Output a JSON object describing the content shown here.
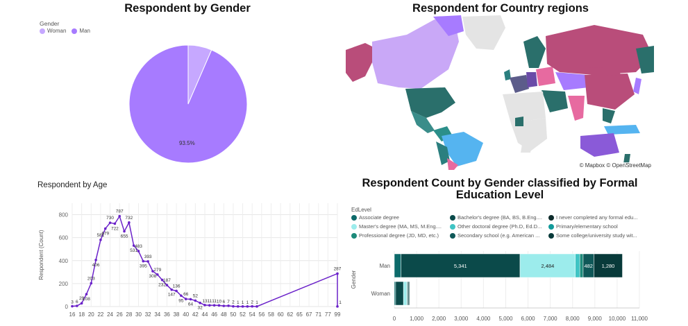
{
  "gender_panel": {
    "title": "Respondent by Gender",
    "legend_title": "Gender",
    "colors": {
      "Woman": "#c6a8ff",
      "Man": "#a77bff"
    }
  },
  "map_panel": {
    "title": "Respondent for Country regions",
    "attribution": "© Mapbox © OpenStreetMap"
  },
  "age_panel": {
    "title": "Respondent by Age",
    "line_color": "#6a21c9"
  },
  "edu_panel": {
    "title_line1": "Respondent Count by Gender classified by Formal",
    "title_line2": "Education Level",
    "legend_title": "EdLevel",
    "legend": [
      {
        "label": "Associate degree",
        "color": "#0d6a6a"
      },
      {
        "label": "Bachelor's degree (BA, BS, B.Eng....",
        "color": "#0b4a4a"
      },
      {
        "label": "I never completed any formal edu...",
        "color": "#0e2b2b"
      },
      {
        "label": "Master's degree (MA, MS, M.Eng....",
        "color": "#9cecec"
      },
      {
        "label": "Other doctoral degree (Ph.D, Ed.D...",
        "color": "#3fc4c4"
      },
      {
        "label": "Primary/elementary school",
        "color": "#129a9a"
      },
      {
        "label": "Professional degree (JD, MD, etc.)",
        "color": "#1d8a7a"
      },
      {
        "label": "Secondary school (e.g. American ...",
        "color": "#0f5858"
      },
      {
        "label": "Some college/university study wit...",
        "color": "#083a3a"
      }
    ]
  },
  "chart_data": [
    {
      "type": "pie",
      "title": "Respondent by Gender",
      "legend_title": "Gender",
      "categories": [
        "Woman",
        "Man"
      ],
      "values": [
        6.5,
        93.5
      ],
      "data_labels": [
        "",
        "93.5%"
      ],
      "legend_position": "top-left"
    },
    {
      "type": "line",
      "title": "Respondent by Age",
      "ylabel": "Respondent (Count)",
      "xlabel": "",
      "x_ticks": [
        "16",
        "18",
        "20",
        "22",
        "24",
        "26",
        "28",
        "30",
        "32",
        "34",
        "36",
        "38",
        "40",
        "42",
        "44",
        "46",
        "48",
        "50",
        "52",
        "54",
        "56",
        "58",
        "60",
        "62",
        "65",
        "67",
        "71",
        "77",
        "99"
      ],
      "ylim": [
        0,
        900
      ],
      "y_ticks": [
        "0",
        "200",
        "400",
        "600",
        "800"
      ],
      "points": [
        {
          "x": 0.0,
          "y": 3,
          "label": "3"
        },
        {
          "x": 0.5,
          "y": 6,
          "label": "6"
        },
        {
          "x": 1.0,
          "y": 29,
          "label": "29"
        },
        {
          "x": 1.5,
          "y": 108,
          "label": "108"
        },
        {
          "x": 2.0,
          "y": 203,
          "label": "203"
        },
        {
          "x": 2.5,
          "y": 406,
          "label": "406"
        },
        {
          "x": 3.0,
          "y": 581,
          "label": "581"
        },
        {
          "x": 3.5,
          "y": 679,
          "label": "679"
        },
        {
          "x": 4.0,
          "y": 730,
          "label": "730"
        },
        {
          "x": 4.5,
          "y": 722,
          "label": "722"
        },
        {
          "x": 5.0,
          "y": 787,
          "label": "787"
        },
        {
          "x": 5.5,
          "y": 655,
          "label": "655"
        },
        {
          "x": 6.0,
          "y": 732,
          "label": "732"
        },
        {
          "x": 6.5,
          "y": 531,
          "label": "531"
        },
        {
          "x": 7.0,
          "y": 483,
          "label": "483"
        },
        {
          "x": 7.5,
          "y": 395,
          "label": "395"
        },
        {
          "x": 8.0,
          "y": 393,
          "label": "393"
        },
        {
          "x": 8.5,
          "y": 308,
          "label": "308"
        },
        {
          "x": 9.0,
          "y": 279,
          "label": "279"
        },
        {
          "x": 9.5,
          "y": 232,
          "label": "232"
        },
        {
          "x": 10.0,
          "y": 187,
          "label": "187"
        },
        {
          "x": 10.5,
          "y": 147,
          "label": "147"
        },
        {
          "x": 11.0,
          "y": 136,
          "label": "136"
        },
        {
          "x": 11.5,
          "y": 95,
          "label": "95"
        },
        {
          "x": 12.0,
          "y": 66,
          "label": "66"
        },
        {
          "x": 12.5,
          "y": 64,
          "label": "64"
        },
        {
          "x": 13.0,
          "y": 52,
          "label": "52"
        },
        {
          "x": 13.5,
          "y": 32,
          "label": "32"
        },
        {
          "x": 14.0,
          "y": 13,
          "label": "13"
        },
        {
          "x": 14.5,
          "y": 11,
          "label": "11"
        },
        {
          "x": 15.0,
          "y": 11,
          "label": "11"
        },
        {
          "x": 15.5,
          "y": 10,
          "label": "10"
        },
        {
          "x": 16.0,
          "y": 6,
          "label": "6"
        },
        {
          "x": 16.5,
          "y": 7,
          "label": "7"
        },
        {
          "x": 17.0,
          "y": 2,
          "label": "2"
        },
        {
          "x": 17.5,
          "y": 1,
          "label": "1"
        },
        {
          "x": 18.0,
          "y": 1,
          "label": "1"
        },
        {
          "x": 18.5,
          "y": 1,
          "label": "1"
        },
        {
          "x": 19.0,
          "y": 2,
          "label": "2"
        },
        {
          "x": 19.5,
          "y": 1,
          "label": "1"
        },
        {
          "x": 28.0,
          "y": 287,
          "label": "287"
        },
        {
          "x": 28.0,
          "y": 1,
          "label": "1"
        }
      ],
      "grid": true
    },
    {
      "type": "bar",
      "orientation": "horizontal",
      "stacked": true,
      "title": "Respondent Count by Gender classified by Formal Education Level",
      "ylabel": "Gender",
      "categories": [
        "Man",
        "Woman"
      ],
      "xlim": [
        0,
        11000
      ],
      "x_ticks": [
        "0",
        "1,000",
        "2,000",
        "3,000",
        "4,000",
        "5,000",
        "6,000",
        "7,000",
        "8,000",
        "9,000",
        "10,000",
        "11,000"
      ],
      "series": [
        {
          "name": "Associate degree",
          "values": [
            300,
            60
          ],
          "label": [
            "",
            ""
          ]
        },
        {
          "name": "Bachelor's degree (BA, BS, B.Eng....",
          "values": [
            5341,
            350
          ],
          "label": [
            "5,341",
            ""
          ]
        },
        {
          "name": "Master's degree (MA, MS, M.Eng....",
          "values": [
            2484,
            130
          ],
          "label": [
            "2,484",
            ""
          ]
        },
        {
          "name": "Other doctoral degree (Ph.D, Ed.D...",
          "values": [
            200,
            30
          ],
          "label": [
            "",
            ""
          ]
        },
        {
          "name": "Professional degree (JD, MD, etc.)",
          "values": [
            150,
            20
          ],
          "label": [
            "",
            ""
          ]
        },
        {
          "name": "Secondary school (e.g. American ...",
          "values": [
            482,
            40
          ],
          "label": [
            "482",
            ""
          ]
        },
        {
          "name": "Some college/university study wit...",
          "values": [
            1280,
            50
          ],
          "label": [
            "1,280",
            ""
          ]
        }
      ]
    }
  ]
}
